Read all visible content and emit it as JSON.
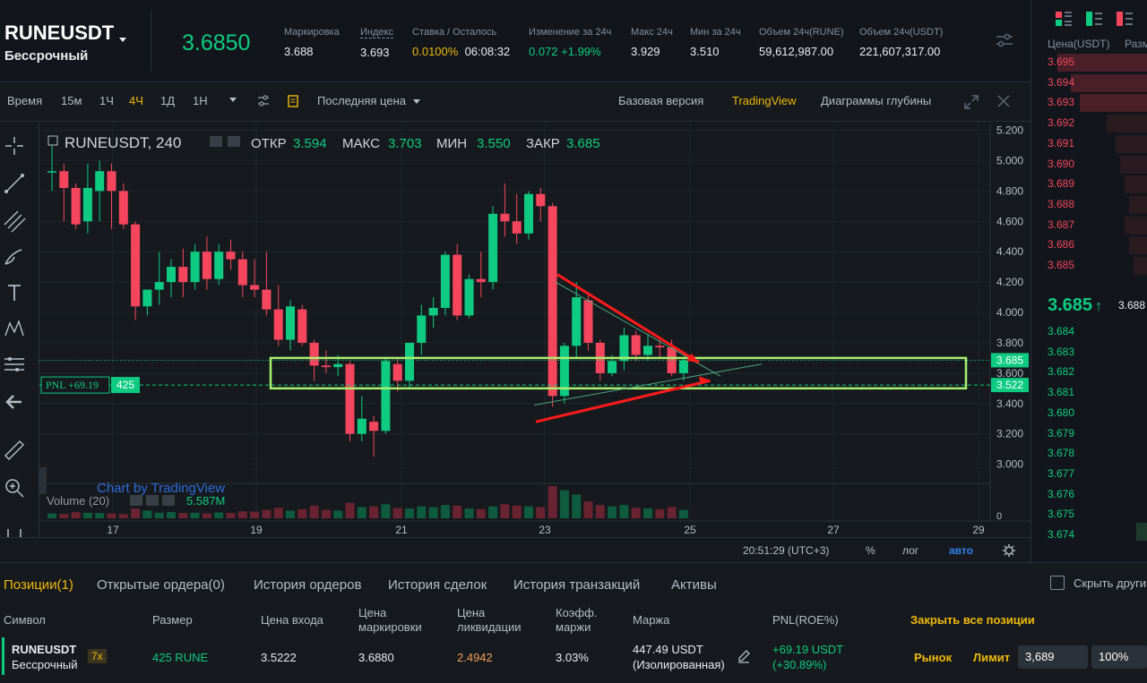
{
  "ticker": {
    "symbol": "RUNEUSDT",
    "contract_type": "Бессрочный",
    "last_price": "3.6850",
    "stats": [
      {
        "label": "Маркировка",
        "value": "3.688"
      },
      {
        "label": "Индекс",
        "value": "3.693"
      },
      {
        "label": "Ставка / Осталось",
        "value_a": "0.0100%",
        "value_b": "06:08:32"
      },
      {
        "label": "Изменение за 24ч",
        "value": "0.072 +1.99%"
      },
      {
        "label": "Макс 24ч",
        "value": "3.929"
      },
      {
        "label": "Мин за 24ч",
        "value": "3.510"
      },
      {
        "label": "Объем 24ч(RUNE)",
        "value": "59,612,987.00"
      },
      {
        "label": "Объем 24ч(USDT)",
        "value": "221,607,317.00"
      }
    ]
  },
  "toolbar": {
    "time": "Время",
    "intervals": [
      "15м",
      "1Ч",
      "4Ч",
      "1Д",
      "1Н"
    ],
    "active_interval": "4Ч",
    "price_type": "Последняя цена",
    "views": [
      "Базовая версия",
      "TradingView",
      "Диаграммы глубины"
    ],
    "active_view": "TradingView"
  },
  "chart_header": {
    "title": "RUNEUSDT, 240",
    "open_label": "ОТКР",
    "open": "3.594",
    "high_label": "МАКС",
    "high": "3.703",
    "low_label": "МИН",
    "low": "3.550",
    "close_label": "ЗАКР",
    "close": "3.685",
    "volume_label": "Volume (20)",
    "volume_value": "5.587M",
    "watermark": "Chart by TradingView",
    "pnl_label": "PNL +69.19",
    "pnl_qty": "425",
    "last_price_tag": "3.685",
    "entry_price_tag": "3.522"
  },
  "chart_data": {
    "type": "candlestick",
    "y_ticks": [
      "5.200",
      "5.000",
      "4.800",
      "4.600",
      "4.400",
      "4.200",
      "4.000",
      "3.800",
      "3.600",
      "3.400",
      "3.200",
      "3.000"
    ],
    "ylim": [
      2.88,
      5.25
    ],
    "x_ticks": [
      "17",
      "19",
      "21",
      "23",
      "25",
      "27",
      "29"
    ],
    "volume_zero_label": "0",
    "candles": [
      {
        "o": 4.93,
        "h": 5.1,
        "l": 4.8,
        "c": 4.93
      },
      {
        "o": 4.93,
        "h": 4.98,
        "l": 4.6,
        "c": 4.82
      },
      {
        "o": 4.82,
        "h": 4.85,
        "l": 4.55,
        "c": 4.58
      },
      {
        "o": 4.6,
        "h": 4.98,
        "l": 4.52,
        "c": 4.82
      },
      {
        "o": 4.8,
        "h": 5.0,
        "l": 4.6,
        "c": 4.93
      },
      {
        "o": 4.93,
        "h": 4.98,
        "l": 4.55,
        "c": 4.8
      },
      {
        "o": 4.8,
        "h": 4.85,
        "l": 4.55,
        "c": 4.58
      },
      {
        "o": 4.58,
        "h": 4.6,
        "l": 3.95,
        "c": 4.04
      },
      {
        "o": 4.04,
        "h": 4.15,
        "l": 3.98,
        "c": 4.15
      },
      {
        "o": 4.15,
        "h": 4.4,
        "l": 4.05,
        "c": 4.2
      },
      {
        "o": 4.2,
        "h": 4.35,
        "l": 4.1,
        "c": 4.3
      },
      {
        "o": 4.3,
        "h": 4.42,
        "l": 4.1,
        "c": 4.2
      },
      {
        "o": 4.2,
        "h": 4.45,
        "l": 4.15,
        "c": 4.4
      },
      {
        "o": 4.4,
        "h": 4.5,
        "l": 4.15,
        "c": 4.22
      },
      {
        "o": 4.22,
        "h": 4.45,
        "l": 4.18,
        "c": 4.4
      },
      {
        "o": 4.4,
        "h": 4.48,
        "l": 4.28,
        "c": 4.35
      },
      {
        "o": 4.35,
        "h": 4.4,
        "l": 4.1,
        "c": 4.18
      },
      {
        "o": 4.18,
        "h": 4.35,
        "l": 4.1,
        "c": 4.15
      },
      {
        "o": 4.15,
        "h": 4.4,
        "l": 3.98,
        "c": 4.02
      },
      {
        "o": 4.02,
        "h": 4.18,
        "l": 3.78,
        "c": 3.82
      },
      {
        "o": 3.82,
        "h": 4.08,
        "l": 3.75,
        "c": 4.04
      },
      {
        "o": 4.02,
        "h": 4.05,
        "l": 3.78,
        "c": 3.8
      },
      {
        "o": 3.8,
        "h": 3.82,
        "l": 3.55,
        "c": 3.65
      },
      {
        "o": 3.65,
        "h": 3.75,
        "l": 3.6,
        "c": 3.64
      },
      {
        "o": 3.64,
        "h": 3.72,
        "l": 3.58,
        "c": 3.66
      },
      {
        "o": 3.66,
        "h": 3.68,
        "l": 3.15,
        "c": 3.2
      },
      {
        "o": 3.2,
        "h": 3.45,
        "l": 3.15,
        "c": 3.3
      },
      {
        "o": 3.28,
        "h": 3.32,
        "l": 3.05,
        "c": 3.22
      },
      {
        "o": 3.22,
        "h": 3.7,
        "l": 3.2,
        "c": 3.68
      },
      {
        "o": 3.66,
        "h": 3.7,
        "l": 3.48,
        "c": 3.55
      },
      {
        "o": 3.55,
        "h": 3.8,
        "l": 3.5,
        "c": 3.8
      },
      {
        "o": 3.8,
        "h": 4.05,
        "l": 3.72,
        "c": 3.98
      },
      {
        "o": 3.98,
        "h": 4.1,
        "l": 3.9,
        "c": 4.03
      },
      {
        "o": 4.03,
        "h": 4.4,
        "l": 3.98,
        "c": 4.38
      },
      {
        "o": 4.38,
        "h": 4.45,
        "l": 3.95,
        "c": 3.98
      },
      {
        "o": 3.98,
        "h": 4.25,
        "l": 3.96,
        "c": 4.22
      },
      {
        "o": 4.22,
        "h": 4.4,
        "l": 4.1,
        "c": 4.2
      },
      {
        "o": 4.2,
        "h": 4.7,
        "l": 4.15,
        "c": 4.65
      },
      {
        "o": 4.65,
        "h": 4.85,
        "l": 4.5,
        "c": 4.6
      },
      {
        "o": 4.6,
        "h": 4.78,
        "l": 4.45,
        "c": 4.52
      },
      {
        "o": 4.52,
        "h": 4.8,
        "l": 4.48,
        "c": 4.78
      },
      {
        "o": 4.78,
        "h": 4.82,
        "l": 4.6,
        "c": 4.7
      },
      {
        "o": 4.7,
        "h": 4.72,
        "l": 3.38,
        "c": 3.45
      },
      {
        "o": 3.45,
        "h": 3.8,
        "l": 3.4,
        "c": 3.78
      },
      {
        "o": 3.78,
        "h": 4.2,
        "l": 3.7,
        "c": 4.1
      },
      {
        "o": 4.08,
        "h": 4.12,
        "l": 3.75,
        "c": 3.8
      },
      {
        "o": 3.8,
        "h": 3.82,
        "l": 3.55,
        "c": 3.6
      },
      {
        "o": 3.6,
        "h": 3.72,
        "l": 3.58,
        "c": 3.68
      },
      {
        "o": 3.68,
        "h": 3.9,
        "l": 3.62,
        "c": 3.85
      },
      {
        "o": 3.85,
        "h": 3.88,
        "l": 3.68,
        "c": 3.72
      },
      {
        "o": 3.72,
        "h": 3.86,
        "l": 3.68,
        "c": 3.78
      },
      {
        "o": 3.78,
        "h": 3.84,
        "l": 3.7,
        "c": 3.77
      },
      {
        "o": 3.77,
        "h": 3.82,
        "l": 3.58,
        "c": 3.6
      },
      {
        "o": 3.6,
        "h": 3.7,
        "l": 3.55,
        "c": 3.685
      }
    ],
    "volumes": [
      35,
      30,
      45,
      40,
      38,
      35,
      30,
      70,
      55,
      40,
      45,
      38,
      40,
      35,
      42,
      38,
      50,
      48,
      60,
      75,
      55,
      65,
      90,
      60,
      55,
      110,
      80,
      85,
      100,
      75,
      70,
      85,
      80,
      95,
      90,
      70,
      65,
      85,
      100,
      90,
      85,
      80,
      230,
      200,
      170,
      120,
      95,
      85,
      95,
      75,
      70,
      65,
      80,
      60
    ]
  },
  "chart_status": {
    "time": "20:51:29 (UTC+3)",
    "percent": "%",
    "log": "лог",
    "auto": "авто"
  },
  "orderbook": {
    "price_header": "Цена(USDT)",
    "size_header": "Разм",
    "asks": [
      "3.695",
      "3.694",
      "3.693",
      "3.692",
      "3.691",
      "3.690",
      "3.689",
      "3.688",
      "3.687",
      "3.686",
      "3.685"
    ],
    "mid_price": "3.685",
    "mid_mark": "3.688",
    "bids": [
      "3.684",
      "3.683",
      "3.682",
      "3.681",
      "3.680",
      "3.679",
      "3.678",
      "3.677",
      "3.676",
      "3.675",
      "3.674"
    ]
  },
  "positions": {
    "tabs": [
      "Позиции(1)",
      "Открытые ордера(0)",
      "История ордеров",
      "История сделок",
      "История транзакций",
      "Активы"
    ],
    "hide_label": "Скрыть други",
    "headers": {
      "symbol": "Символ",
      "size": "Размер",
      "entry": "Цена входа",
      "mark": "Цена маркировки",
      "liq": "Цена ликвидации",
      "margin_ratio": "Коэфф. маржи",
      "margin": "Маржа",
      "pnl": "PNL(ROE%)"
    },
    "close_all": "Закрыть все позиции",
    "row": {
      "symbol": "RUNEUSDT",
      "contract": "Бессрочный",
      "leverage": "7x",
      "size": "425 RUNE",
      "entry": "3.5222",
      "mark": "3.6880",
      "liq": "2.4942",
      "margin_ratio": "3.03%",
      "margin": "447.49 USDT",
      "margin_type": "(Изолированная)",
      "pnl": "+69.19 USDT",
      "roe": "(+30.89%)",
      "market": "Рынок",
      "limit": "Лимит",
      "limit_price": "3,689",
      "pct": "100%"
    }
  },
  "colors": {
    "up": "#0ecb81",
    "down": "#f6465d",
    "accent": "#f0b90b",
    "highlight": "#a8f070",
    "arrows": "#ff1a1a"
  }
}
